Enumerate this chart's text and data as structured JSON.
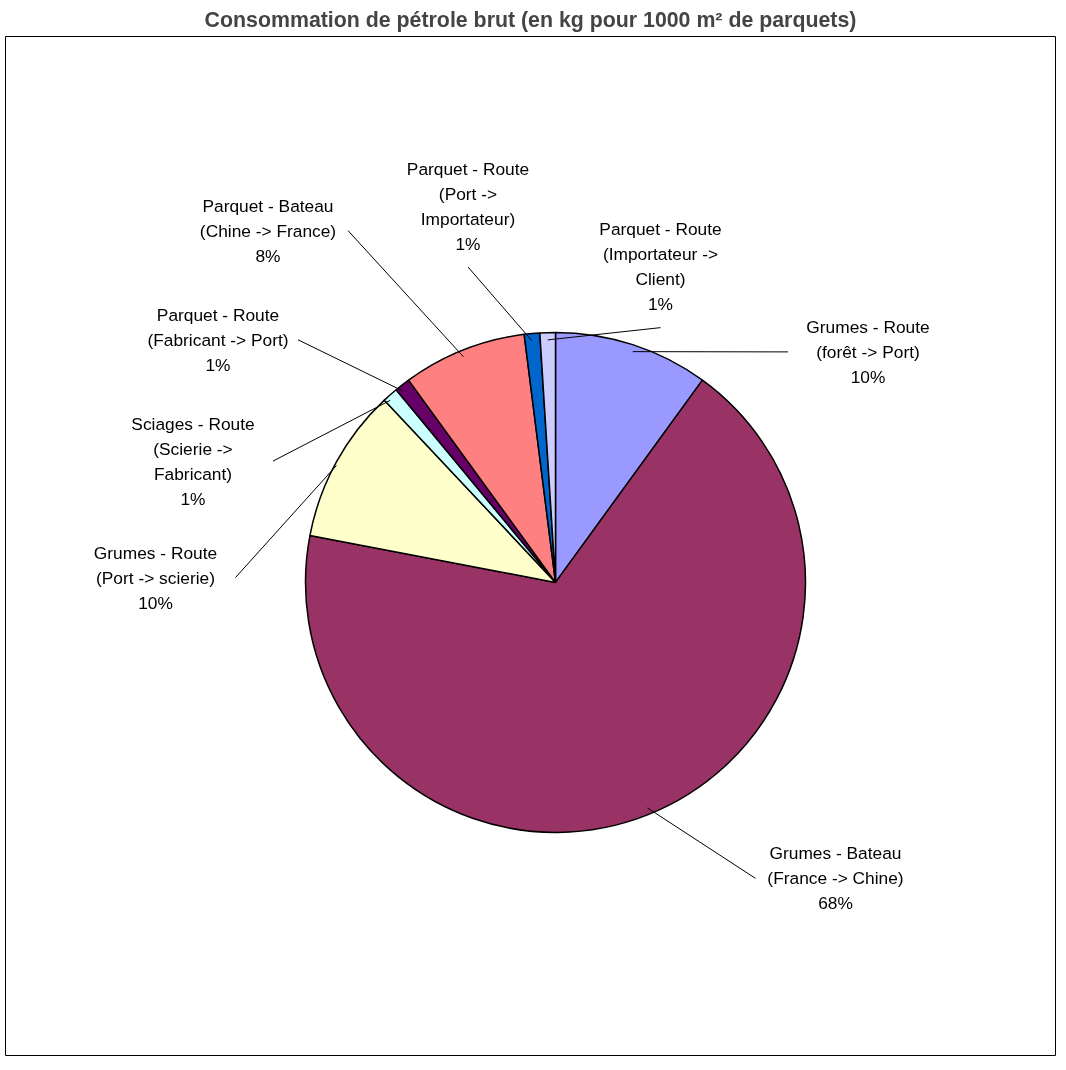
{
  "chart_data": {
    "type": "pie",
    "title": "Consommation de pétrole brut (en kg pour 1000 m² de parquets)",
    "categories": [
      "Grumes - Route\n(forêt -> Port)",
      "Grumes - Bateau\n(France -> Chine)",
      "Grumes - Route\n(Port -> scierie)",
      "Sciages - Route\n(Scierie ->\nFabricant)",
      "Parquet - Route\n(Fabricant -> Port)",
      "Parquet - Bateau\n(Chine -> France)",
      "Parquet - Route\n(Port ->\nImportateur)",
      "Parquet - Route\n(Importateur ->\nClient)"
    ],
    "values": [
      10,
      68,
      10,
      1,
      1,
      8,
      1,
      1
    ],
    "colors": [
      "#9999ff",
      "#993366",
      "#ffffcc",
      "#ccffff",
      "#660066",
      "#ff8080",
      "#0066cc",
      "#ccccff"
    ],
    "value_labels": [
      "10%",
      "68%",
      "10%",
      "1%",
      "1%",
      "8%",
      "1%",
      "1%"
    ]
  }
}
